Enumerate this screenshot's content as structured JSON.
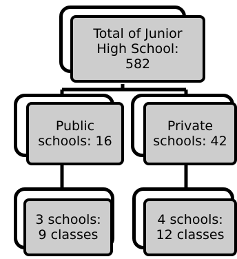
{
  "diagram": {
    "root": {
      "lines": [
        "Total of Junior",
        "High School:",
        "582"
      ]
    },
    "public": {
      "lines": [
        "Public",
        "schools: 16"
      ]
    },
    "private": {
      "lines": [
        "Private",
        "schools: 42"
      ]
    },
    "public_detail": {
      "lines": [
        "3 schools:",
        "9 classes"
      ]
    },
    "private_detail": {
      "lines": [
        "4 schools:",
        "12 classes"
      ]
    }
  },
  "colors": {
    "box_fill": "#cdcdcd",
    "back_fill": "#ffffff",
    "stroke": "#000000"
  }
}
